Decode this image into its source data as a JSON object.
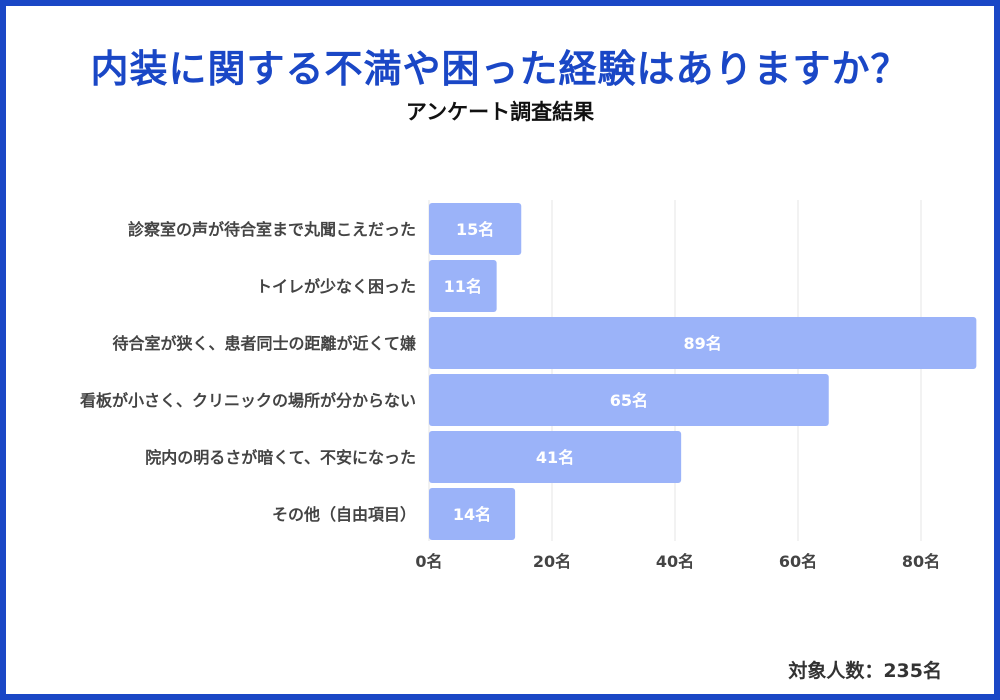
{
  "title": "内装に関する不満や困った経験はありますか？",
  "subtitle": "アンケート調査結果",
  "footer": "対象人数：235名",
  "colors": {
    "frame": "#1a47c6",
    "title": "#1a47c6",
    "bar": "#9bb3f9",
    "bar_label": "#ffffff",
    "grid": "#e6e6e6"
  },
  "chart_data": {
    "type": "bar",
    "orientation": "horizontal",
    "categories": [
      "診察室の声が待合室まで丸聞こえだった",
      "トイレが少なく困った",
      "待合室が狭く、患者同士の距離が近くて嫌",
      "看板が小さく、クリニックの場所が分からない",
      "院内の明るさが暗くて、不安になった",
      "その他（自由項目）"
    ],
    "values": [
      15,
      11,
      89,
      65,
      41,
      14
    ],
    "data_labels": [
      "15名",
      "11名",
      "89名",
      "65名",
      "41名",
      "14名"
    ],
    "xlim": [
      0,
      89
    ],
    "xticks": [
      0,
      20,
      40,
      60,
      80
    ],
    "xtick_labels": [
      "0名",
      "20名",
      "40名",
      "60名",
      "80名"
    ],
    "grid": true
  }
}
